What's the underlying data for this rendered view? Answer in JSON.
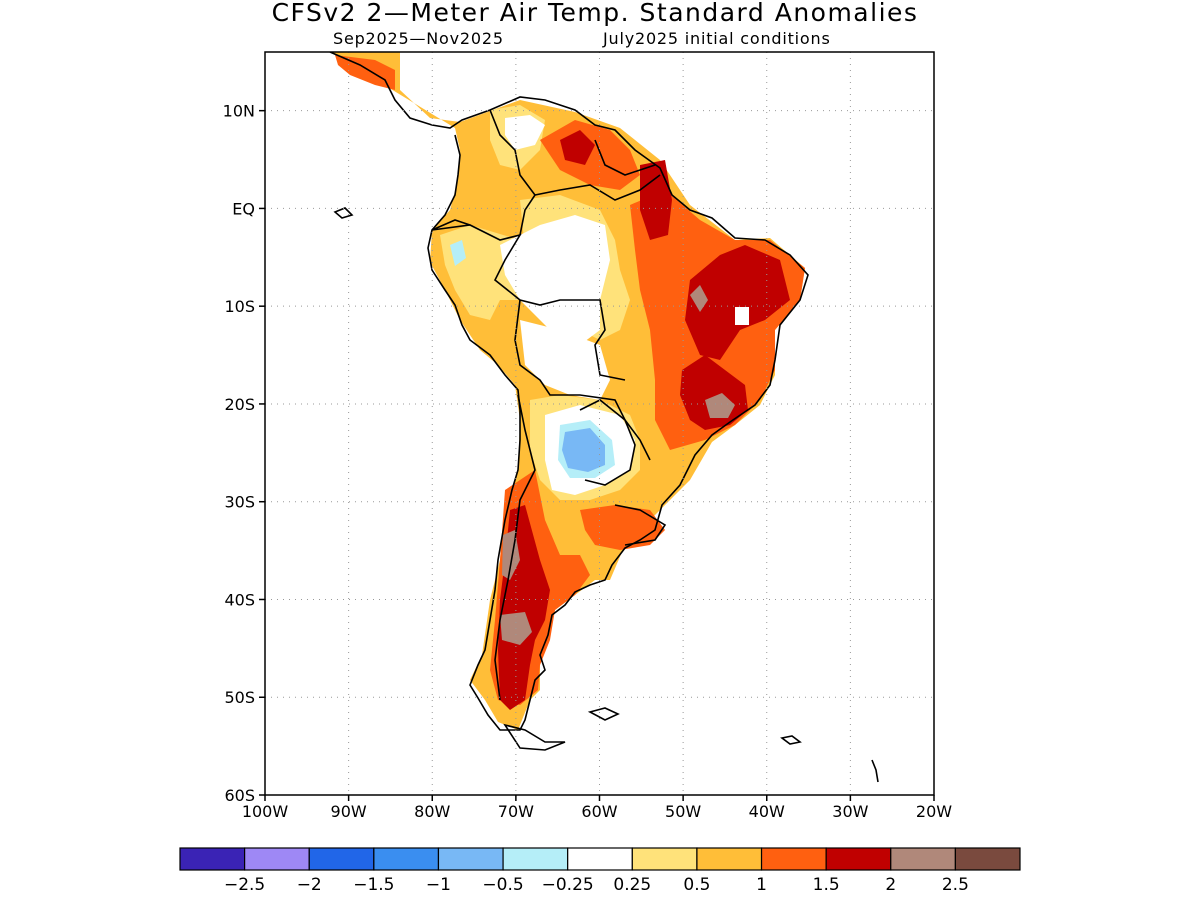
{
  "title": "CFSv2 2—Meter Air Temp. Standard Anomalies",
  "subtitle_left": "Sep2025—Nov2025",
  "subtitle_right": "July2025 initial conditions",
  "axes": {
    "lat_labels": [
      "10N",
      "EQ",
      "10S",
      "20S",
      "30S",
      "40S",
      "50S",
      "60S"
    ],
    "lat_values": [
      10,
      0,
      -10,
      -20,
      -30,
      -40,
      -50,
      -60
    ],
    "lon_labels": [
      "100W",
      "90W",
      "80W",
      "70W",
      "60W",
      "50W",
      "40W",
      "30W",
      "20W"
    ],
    "lon_values": [
      -100,
      -90,
      -80,
      -70,
      -60,
      -50,
      -40,
      -30,
      -20
    ],
    "lat_range": [
      -60,
      16
    ],
    "lon_range": [
      -100,
      -20
    ],
    "grid": "dotted"
  },
  "legend": {
    "colors": [
      "#3a23b5",
      "#9e88f5",
      "#2166e8",
      "#3a8ef0",
      "#78b8f5",
      "#b5eef8",
      "#ffffff",
      "#ffe27a",
      "#ffbe38",
      "#ff6010",
      "#c00000",
      "#b0887a",
      "#7a4a3e"
    ],
    "labels": [
      "−2.5",
      "−2",
      "−1.5",
      "−1",
      "−0.5",
      "−0.25",
      "0.25",
      "0.5",
      "1",
      "1.5",
      "2",
      "2.5"
    ]
  }
}
